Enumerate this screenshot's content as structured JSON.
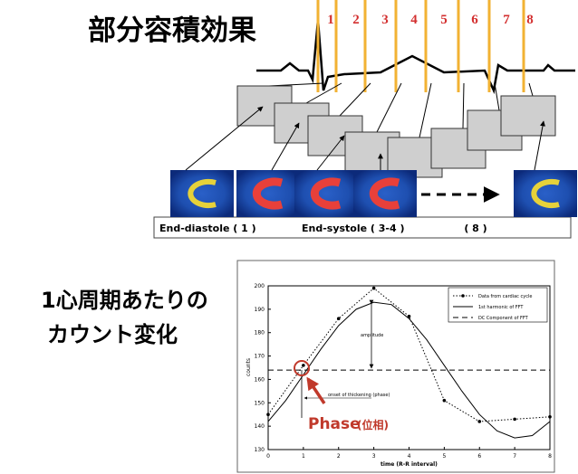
{
  "slide": {
    "title": "部分容積効果",
    "numbers": [
      "1",
      "2",
      "3",
      "4",
      "5",
      "6",
      "7",
      "8"
    ],
    "phase_labels": [
      "End-diastole ( 1 )",
      "End-systole ( 3-4 )",
      "( 8 )"
    ],
    "side_text": [
      "1心周期あたりの",
      "カウント変化"
    ]
  },
  "chart_data": {
    "type": "line",
    "xlabel": "time (R-R interval)",
    "ylabel": "counts",
    "xlim": [
      0,
      8
    ],
    "xticks": [
      0,
      1,
      2,
      3,
      4,
      5,
      6,
      7,
      8
    ],
    "ylim": [
      130,
      200
    ],
    "yticks": [
      130,
      140,
      150,
      160,
      170,
      180,
      190,
      200
    ],
    "series": [
      {
        "name": "Data from cardiac cycle",
        "color": "#000000",
        "line_style": "dotted",
        "marker": true,
        "x": [
          0,
          1,
          2,
          3,
          4,
          5,
          6,
          7,
          8
        ],
        "values": [
          145,
          166,
          186,
          199,
          187,
          151,
          142,
          143,
          144
        ]
      },
      {
        "name": "1st harmonic of FFT",
        "color": "#000000",
        "line_style": "solid",
        "marker": false,
        "x": [
          0,
          0.5,
          1,
          1.5,
          2,
          2.5,
          3,
          3.5,
          4,
          4.5,
          5,
          5.5,
          6,
          6.5,
          7,
          7.5,
          8
        ],
        "values": [
          142,
          151,
          162,
          173,
          183,
          190,
          193,
          192,
          186,
          177,
          166,
          155,
          145,
          138,
          135,
          136,
          142
        ]
      },
      {
        "name": "DC Component of FFT",
        "color": "#000000",
        "line_style": "dashed",
        "marker": false,
        "x": [
          0,
          8
        ],
        "values": [
          164,
          164
        ]
      }
    ],
    "annotations": [
      "amplitude",
      "onset of thickening (phase)",
      "Phase",
      "(位相)"
    ]
  }
}
